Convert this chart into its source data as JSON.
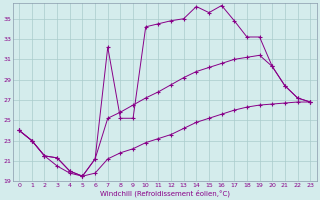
{
  "xlabel": "Windchill (Refroidissement éolien,°C)",
  "bg_color": "#d4ecec",
  "line_color": "#880088",
  "grid_color": "#aacccc",
  "xlim": [
    -0.5,
    23.5
  ],
  "ylim": [
    19,
    36.5
  ],
  "yticks": [
    19,
    21,
    23,
    25,
    27,
    29,
    31,
    33,
    35
  ],
  "xticks": [
    0,
    1,
    2,
    3,
    4,
    5,
    6,
    7,
    8,
    9,
    10,
    11,
    12,
    13,
    14,
    15,
    16,
    17,
    18,
    19,
    20,
    21,
    22,
    23
  ],
  "line1": [
    [
      0,
      24.0
    ],
    [
      1,
      23.0
    ],
    [
      2,
      21.5
    ],
    [
      3,
      20.5
    ],
    [
      4,
      19.8
    ],
    [
      5,
      19.5
    ],
    [
      6,
      21.2
    ],
    [
      7,
      32.2
    ],
    [
      8,
      25.2
    ],
    [
      9,
      25.2
    ],
    [
      10,
      34.2
    ],
    [
      11,
      34.5
    ],
    [
      12,
      34.8
    ],
    [
      13,
      35.0
    ],
    [
      14,
      36.2
    ],
    [
      15,
      35.6
    ],
    [
      16,
      36.3
    ],
    [
      17,
      34.8
    ],
    [
      18,
      33.2
    ],
    [
      19,
      33.2
    ],
    [
      20,
      30.3
    ],
    [
      21,
      28.4
    ],
    [
      22,
      27.2
    ],
    [
      23,
      26.8
    ]
  ],
  "line2": [
    [
      0,
      24.0
    ],
    [
      1,
      23.0
    ],
    [
      2,
      21.5
    ],
    [
      3,
      21.3
    ],
    [
      4,
      20.0
    ],
    [
      5,
      19.5
    ],
    [
      6,
      19.8
    ],
    [
      7,
      21.2
    ],
    [
      8,
      21.8
    ],
    [
      9,
      22.2
    ],
    [
      10,
      22.8
    ],
    [
      11,
      23.2
    ],
    [
      12,
      23.6
    ],
    [
      13,
      24.2
    ],
    [
      14,
      24.8
    ],
    [
      15,
      25.2
    ],
    [
      16,
      25.6
    ],
    [
      17,
      26.0
    ],
    [
      18,
      26.3
    ],
    [
      19,
      26.5
    ],
    [
      20,
      26.6
    ],
    [
      21,
      26.7
    ],
    [
      22,
      26.8
    ],
    [
      23,
      26.8
    ]
  ],
  "line3": [
    [
      0,
      24.0
    ],
    [
      1,
      23.0
    ],
    [
      2,
      21.5
    ],
    [
      3,
      21.3
    ],
    [
      4,
      20.0
    ],
    [
      5,
      19.5
    ],
    [
      6,
      21.2
    ],
    [
      7,
      25.2
    ],
    [
      8,
      25.8
    ],
    [
      9,
      26.5
    ],
    [
      10,
      27.2
    ],
    [
      11,
      27.8
    ],
    [
      12,
      28.5
    ],
    [
      13,
      29.2
    ],
    [
      14,
      29.8
    ],
    [
      15,
      30.2
    ],
    [
      16,
      30.6
    ],
    [
      17,
      31.0
    ],
    [
      18,
      31.2
    ],
    [
      19,
      31.4
    ],
    [
      20,
      30.3
    ],
    [
      21,
      28.4
    ],
    [
      22,
      27.2
    ],
    [
      23,
      26.8
    ]
  ]
}
